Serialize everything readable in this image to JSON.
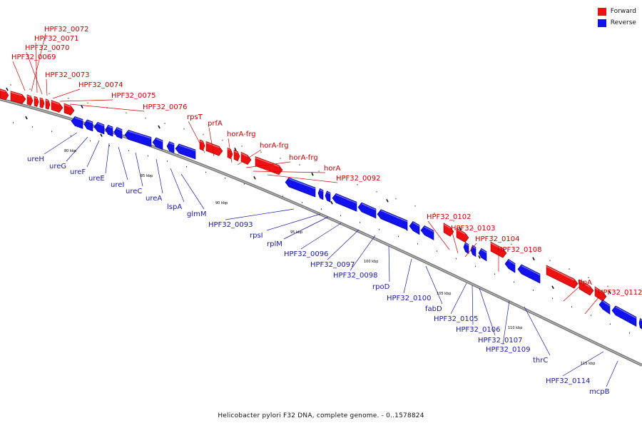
{
  "legend": {
    "forward_label": "Forward",
    "reverse_label": "Reverse",
    "forward_color": "#ee1111",
    "reverse_color": "#1111ee"
  },
  "caption": "Helicobacter pylori F32 DNA, complete genome. - 0..1578824",
  "scale_labels": [
    "80 kbp",
    "85 kbp",
    "90 kbp",
    "95 kbp",
    "100 kbp",
    "105 kbp",
    "110 kbp",
    "115 kbp"
  ],
  "forward_genes": [
    "HPF32_0072",
    "HPF32_0071",
    "HPF32_0070",
    "HPF32_0069",
    "HPF32_0073",
    "HPF32_0074",
    "HPF32_0075",
    "HPF32_0076",
    "rpsT",
    "prfA",
    "horA-frg",
    "horA-frg",
    "horA-frg",
    "horA",
    "HPF32_0092",
    "HPF32_0102",
    "HPF32_0103",
    "HPF32_0104",
    "HPF32_0108",
    "tlpA",
    "HPF32_0112"
  ],
  "reverse_genes": [
    "ureH",
    "ureG",
    "ureF",
    "ureE",
    "ureI",
    "ureC",
    "ureA",
    "lspA",
    "glmM",
    "HPF32_0093",
    "rpsI",
    "rplM",
    "HPF32_0096",
    "HPF32_0097",
    "HPF32_0098",
    "rpoD",
    "HPF32_0100",
    "fabD",
    "HPF32_0105",
    "HPF32_0106",
    "HPF32_0107",
    "HPF32_0109",
    "thrC",
    "HPF32_0114",
    "mcpB"
  ]
}
